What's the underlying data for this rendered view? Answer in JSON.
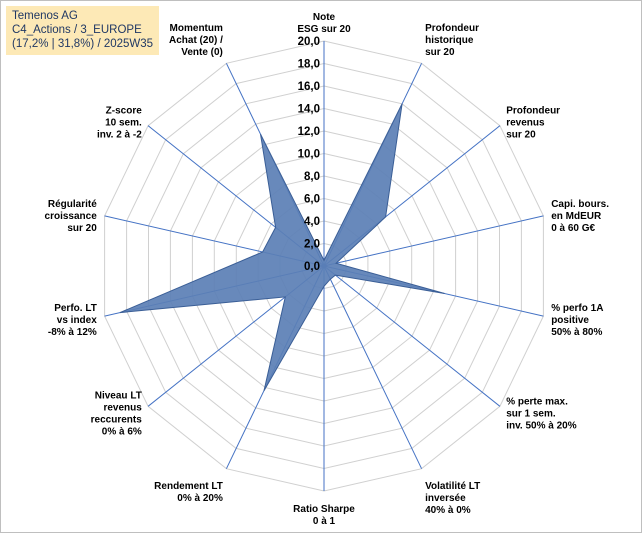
{
  "header": {
    "line1": "Temenos AG",
    "line2": "C4_Actions / 3_EUROPE",
    "line3": "(17,2% | 31,8%) / 2025W35"
  },
  "colors": {
    "fill": "#5b7fb5",
    "stroke": "#3a5e96",
    "axis": "#4472c4",
    "grid": "#d0d0d0",
    "title_bg": "#fde9b6",
    "title_text": "#203864"
  },
  "chart_data": {
    "type": "radar",
    "title": "",
    "rmin": 0,
    "rmax": 20,
    "ticks": [
      "0,0",
      "2,0",
      "4,0",
      "6,0",
      "8,0",
      "10,0",
      "12,0",
      "14,0",
      "16,0",
      "18,0",
      "20,0"
    ],
    "axes": [
      {
        "label": [
          "Note",
          "ESG sur 20"
        ],
        "value": 0.5
      },
      {
        "label": [
          "Profondeur",
          "historique",
          "sur 20"
        ],
        "value": 16
      },
      {
        "label": [
          "Profondeur",
          "revenus",
          "sur 20"
        ],
        "value": 7
      },
      {
        "label": [
          "Capi. bours.",
          "en MdEUR",
          "0 à 60 G€"
        ],
        "value": 1.1
      },
      {
        "label": [
          "% perfo 1A",
          "positive",
          "50% à 80%"
        ],
        "value": 11
      },
      {
        "label": [
          "% perte max.",
          "sur 1 sem.",
          "inv. 50% à 20%"
        ],
        "value": 1.3
      },
      {
        "label": [
          "Volatilité LT",
          "inversée",
          "40% à 0%"
        ],
        "value": 1.3
      },
      {
        "label": [
          "Ratio Sharpe",
          "0 à 1"
        ],
        "value": 1.8
      },
      {
        "label": [
          "Rendement LT",
          "0% à 20%"
        ],
        "value": 12.3
      },
      {
        "label": [
          "Niveau LT",
          "revenus",
          "reccurents",
          "0% à 6%"
        ],
        "value": 4.4
      },
      {
        "label": [
          "Perfo. LT",
          "vs index",
          "-8% à 12%"
        ],
        "value": 18.6
      },
      {
        "label": [
          "Régularité",
          "croissance",
          "sur 20"
        ],
        "value": 5.6
      },
      {
        "label": [
          "Z-score",
          "10 sem.",
          "inv. 2 à -2"
        ],
        "value": 5.5
      },
      {
        "label": [
          "Momentum",
          "Achat (20) /",
          "Vente (0)"
        ],
        "value": 13
      }
    ]
  }
}
